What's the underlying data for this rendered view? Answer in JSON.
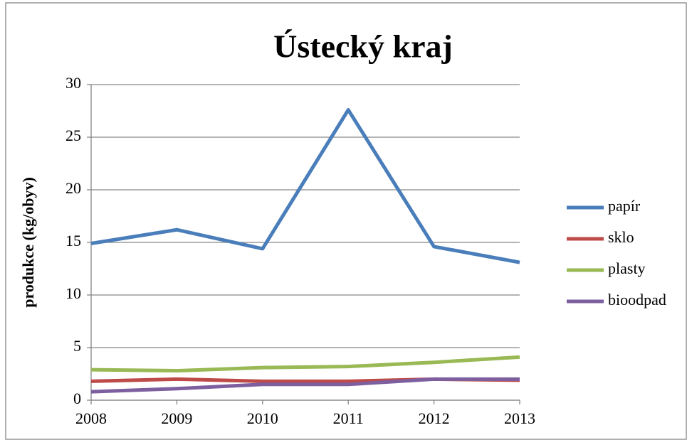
{
  "chart_data": {
    "type": "line",
    "title": "Ústecký kraj",
    "y_label": "produkce (kg/obyv)",
    "x": [
      2008,
      2009,
      2010,
      2011,
      2012,
      2013
    ],
    "xlim": [
      2008,
      2013
    ],
    "xticks": [
      2008,
      2009,
      2010,
      2011,
      2012,
      2013
    ],
    "ylim": [
      0,
      30
    ],
    "yticks": [
      0,
      5,
      10,
      15,
      20,
      25,
      30
    ],
    "grid": true,
    "legend": "right",
    "series": [
      {
        "name": "papír",
        "color": "#4a7ebb",
        "values": [
          14.9,
          16.2,
          14.4,
          27.6,
          14.6,
          13.1
        ]
      },
      {
        "name": "sklo",
        "color": "#be4b48",
        "values": [
          1.8,
          2.0,
          1.8,
          1.8,
          2.0,
          1.9
        ]
      },
      {
        "name": "plasty",
        "color": "#98b954",
        "values": [
          2.9,
          2.8,
          3.1,
          3.2,
          3.6,
          4.1
        ]
      },
      {
        "name": "bioodpad",
        "color": "#7d5fa0",
        "values": [
          0.8,
          1.1,
          1.5,
          1.5,
          2.0,
          2.0
        ]
      }
    ]
  }
}
